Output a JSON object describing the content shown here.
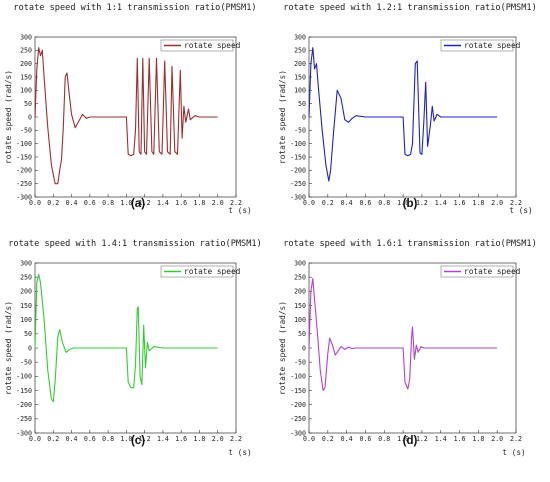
{
  "chart_data": [
    {
      "type": "line",
      "panel_label": "(a)",
      "title": "rotate speed with 1:1 transmission ratio(PMSM1)",
      "xlabel": "t (s)",
      "ylabel": "rotate speed (rad/s)",
      "xlim": [
        0,
        2.2
      ],
      "ylim": [
        -300,
        300
      ],
      "xticks": [
        "0.0",
        "0.2",
        "0.4",
        "0.6",
        "0.8",
        "1.0",
        "1.2",
        "1.4",
        "1.6",
        "1.8",
        "2.0",
        "2.2"
      ],
      "yticks": [
        "-300",
        "-250",
        "-200",
        "-150",
        "-100",
        "-50",
        "0",
        "50",
        "100",
        "150",
        "200",
        "250",
        "300"
      ],
      "legend_position": "top-right",
      "grid": false,
      "series": [
        {
          "name": "rotate speed",
          "color": "#9B2F2F",
          "x": [
            0,
            0.02,
            0.04,
            0.06,
            0.08,
            0.1,
            0.14,
            0.18,
            0.22,
            0.25,
            0.27,
            0.29,
            0.31,
            0.33,
            0.35,
            0.37,
            0.4,
            0.44,
            0.48,
            0.52,
            0.56,
            0.6,
            0.7,
            0.8,
            0.9,
            1.0,
            1.02,
            1.05,
            1.08,
            1.1,
            1.12,
            1.14,
            1.16,
            1.18,
            1.2,
            1.22,
            1.25,
            1.28,
            1.3,
            1.33,
            1.36,
            1.39,
            1.42,
            1.45,
            1.48,
            1.5,
            1.53,
            1.56,
            1.59,
            1.61,
            1.63,
            1.65,
            1.68,
            1.7,
            1.75,
            1.8,
            2.0
          ],
          "y": [
            0,
            180,
            260,
            230,
            250,
            150,
            -40,
            -180,
            -250,
            -250,
            -200,
            -160,
            -40,
            150,
            165,
            100,
            10,
            -40,
            -15,
            10,
            -5,
            0,
            0,
            0,
            0,
            0,
            -140,
            -145,
            -140,
            -50,
            220,
            -130,
            -140,
            220,
            -130,
            -140,
            220,
            -130,
            -140,
            220,
            -130,
            -140,
            210,
            -130,
            -140,
            190,
            -130,
            -140,
            175,
            -80,
            40,
            -20,
            30,
            -10,
            5,
            0,
            0
          ]
        }
      ]
    },
    {
      "type": "line",
      "panel_label": "(b)",
      "title": "rotate speed with 1.2:1 transmission ratio(PMSM1)",
      "xlabel": "t (s)",
      "ylabel": "rotate speed (rad/s)",
      "xlim": [
        0,
        2.2
      ],
      "ylim": [
        -300,
        300
      ],
      "xticks": [
        "0.0",
        "0.2",
        "0.4",
        "0.6",
        "0.8",
        "1.0",
        "1.2",
        "1.4",
        "1.6",
        "1.8",
        "2.0",
        "2.2"
      ],
      "yticks": [
        "-300",
        "-250",
        "-200",
        "-150",
        "-100",
        "-50",
        "0",
        "50",
        "100",
        "150",
        "200",
        "250",
        "300"
      ],
      "legend_position": "top-right",
      "grid": false,
      "series": [
        {
          "name": "rotate speed",
          "color": "#2020C8",
          "x": [
            0,
            0.02,
            0.04,
            0.06,
            0.08,
            0.1,
            0.14,
            0.18,
            0.21,
            0.23,
            0.26,
            0.3,
            0.34,
            0.38,
            0.42,
            0.46,
            0.5,
            0.6,
            0.8,
            1.0,
            1.02,
            1.05,
            1.08,
            1.1,
            1.13,
            1.15,
            1.18,
            1.2,
            1.22,
            1.24,
            1.26,
            1.29,
            1.31,
            1.33,
            1.36,
            1.4,
            1.5,
            2.0
          ],
          "y": [
            0,
            200,
            260,
            180,
            200,
            110,
            -50,
            -180,
            -240,
            -200,
            -60,
            100,
            70,
            -10,
            -20,
            -5,
            5,
            0,
            0,
            0,
            -140,
            -145,
            -140,
            -100,
            200,
            210,
            -135,
            -140,
            -20,
            130,
            -110,
            -30,
            40,
            -15,
            10,
            0,
            0,
            0
          ]
        }
      ]
    },
    {
      "type": "line",
      "panel_label": "(c)",
      "title": "rotate speed with 1.4:1 transmission ratio(PMSM1)",
      "xlabel": "t (s)",
      "ylabel": "rotate speed (rad/s)",
      "xlim": [
        0,
        2.2
      ],
      "ylim": [
        -300,
        300
      ],
      "xticks": [
        "0.0",
        "0.2",
        "0.4",
        "0.6",
        "0.8",
        "1.0",
        "1.2",
        "1.4",
        "1.6",
        "1.8",
        "2.0",
        "2.2"
      ],
      "yticks": [
        "-300",
        "-250",
        "-200",
        "-150",
        "-100",
        "-50",
        "0",
        "50",
        "100",
        "150",
        "200",
        "250",
        "300"
      ],
      "legend_position": "top-right",
      "grid": false,
      "series": [
        {
          "name": "rotate speed",
          "color": "#33CC33",
          "x": [
            0,
            0.02,
            0.04,
            0.06,
            0.1,
            0.14,
            0.18,
            0.2,
            0.22,
            0.25,
            0.27,
            0.3,
            0.34,
            0.38,
            0.42,
            0.5,
            0.7,
            1.0,
            1.02,
            1.05,
            1.08,
            1.1,
            1.12,
            1.13,
            1.15,
            1.17,
            1.19,
            1.21,
            1.23,
            1.25,
            1.3,
            1.4,
            2.0
          ],
          "y": [
            0,
            230,
            260,
            230,
            100,
            -80,
            -180,
            -190,
            -120,
            40,
            65,
            20,
            -15,
            -5,
            0,
            0,
            0,
            0,
            -120,
            -140,
            -140,
            -60,
            140,
            145,
            -100,
            -130,
            80,
            -70,
            20,
            -10,
            5,
            0,
            0
          ]
        }
      ]
    },
    {
      "type": "line",
      "panel_label": "(d)",
      "title": "rotate speed with 1.6:1 transmission ratio(PMSM1)",
      "xlabel": "t (s)",
      "ylabel": "rotate speed (rad/s)",
      "xlim": [
        0,
        2.2
      ],
      "ylim": [
        -300,
        300
      ],
      "xticks": [
        "0.0",
        "0.2",
        "0.4",
        "0.6",
        "0.8",
        "1.0",
        "1.2",
        "1.4",
        "1.6",
        "1.8",
        "2.0",
        "2.2"
      ],
      "yticks": [
        "-300",
        "-250",
        "-200",
        "-150",
        "-100",
        "-50",
        "0",
        "50",
        "100",
        "150",
        "200",
        "250",
        "300"
      ],
      "legend_position": "top-right",
      "grid": false,
      "series": [
        {
          "name": "rotate speed",
          "color": "#B040D8",
          "x": [
            0,
            0.02,
            0.04,
            0.06,
            0.09,
            0.12,
            0.15,
            0.17,
            0.2,
            0.22,
            0.25,
            0.28,
            0.31,
            0.34,
            0.38,
            0.42,
            0.46,
            0.5,
            0.6,
            0.8,
            1.0,
            1.02,
            1.05,
            1.07,
            1.09,
            1.1,
            1.12,
            1.14,
            1.16,
            1.19,
            1.22,
            1.3,
            2.0
          ],
          "y": [
            0,
            200,
            245,
            170,
            50,
            -80,
            -150,
            -140,
            -20,
            35,
            10,
            -25,
            -10,
            5,
            -5,
            3,
            -2,
            0,
            0,
            0,
            0,
            -120,
            -145,
            -110,
            40,
            75,
            -40,
            10,
            -15,
            5,
            0,
            0,
            0
          ]
        }
      ]
    }
  ]
}
